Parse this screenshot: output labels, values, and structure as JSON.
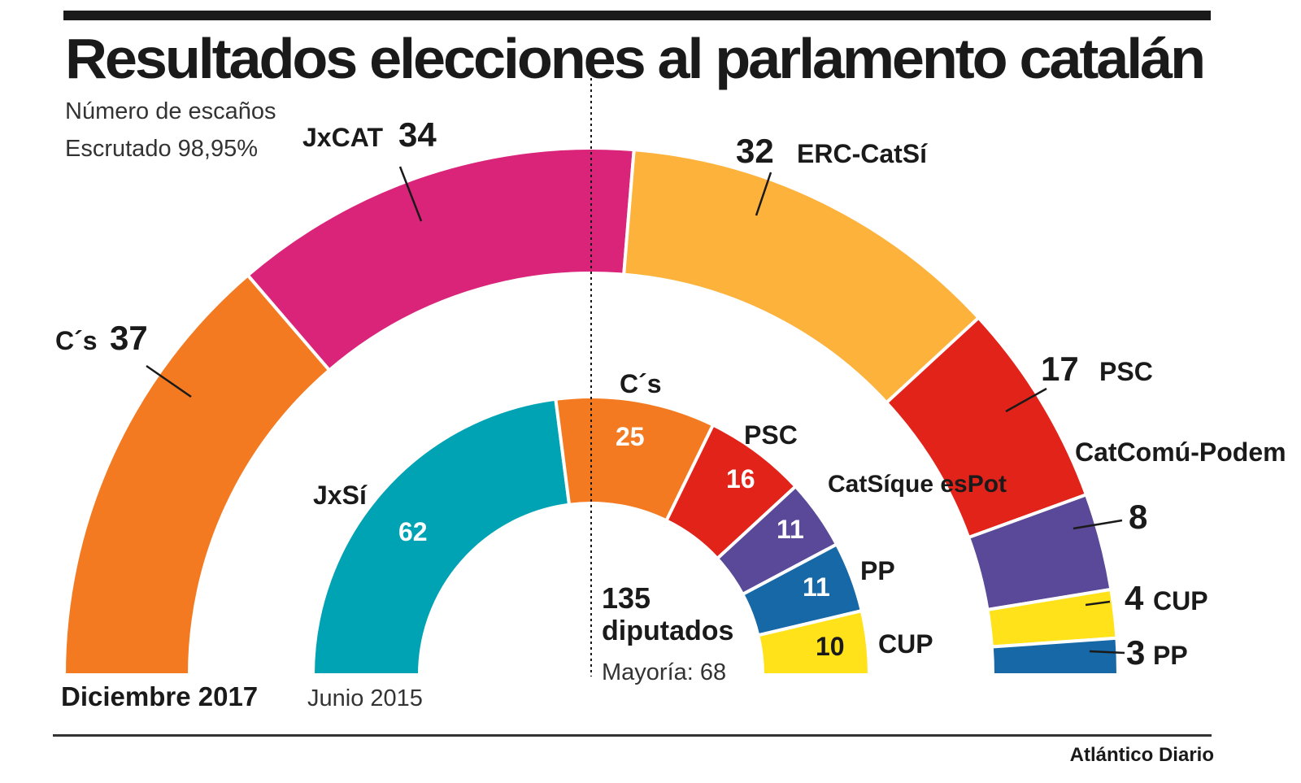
{
  "title": "Resultados elecciones al parlamento catalán",
  "subtitle_1": "Número de escaños",
  "subtitle_2": "Escrutado 98,95%",
  "source": "Atlántico Diario",
  "center": {
    "total": "135",
    "total_label": "diputados",
    "majority": "Mayoría: 68"
  },
  "chart_data": [
    {
      "type": "pie",
      "variant": "semicircle-donut",
      "label": "Diciembre 2017",
      "categories": [
        "C´s",
        "JxCAT",
        "ERC-CatSí",
        "PSC",
        "CatComú-Podem",
        "CUP",
        "PP"
      ],
      "values": [
        37,
        34,
        32,
        17,
        8,
        4,
        3
      ],
      "colors": [
        "#F47A22",
        "#D9247A",
        "#FDB23C",
        "#E2231A",
        "#5A4898",
        "#FFE21A",
        "#1768A6"
      ]
    },
    {
      "type": "pie",
      "variant": "semicircle-donut",
      "label": "Junio 2015",
      "categories": [
        "JxSí",
        "C´s",
        "PSC",
        "CatSíque esPot",
        "PP",
        "CUP"
      ],
      "values": [
        62,
        25,
        16,
        11,
        11,
        10
      ],
      "colors": [
        "#00A3B4",
        "#F47A22",
        "#E2231A",
        "#5A4898",
        "#1768A6",
        "#FFE21A"
      ]
    }
  ]
}
